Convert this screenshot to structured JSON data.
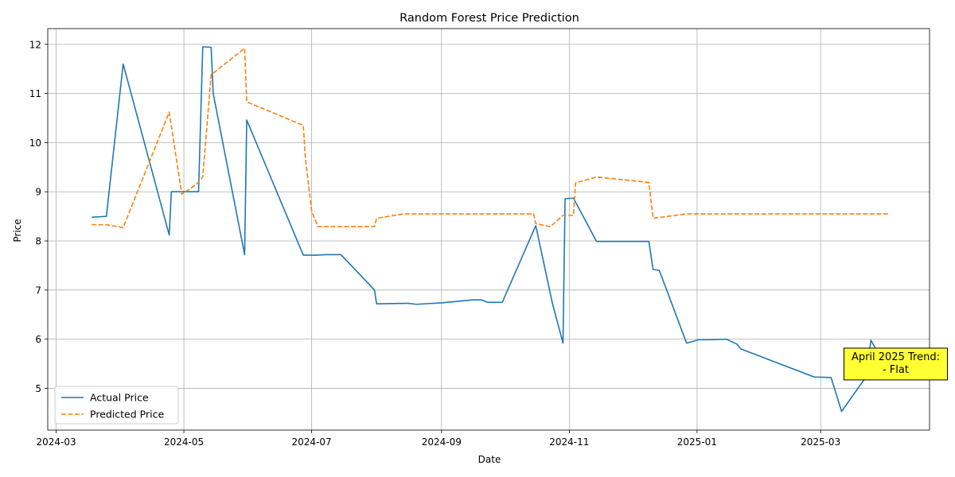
{
  "chart_data": {
    "type": "line",
    "title": "Random Forest Price Prediction",
    "xlabel": "Date",
    "ylabel": "Price",
    "x_ticks": [
      "2024-03",
      "2024-05",
      "2024-07",
      "2024-09",
      "2024-11",
      "2025-01",
      "2025-03"
    ],
    "x_range": [
      "2024-02-26",
      "2025-04-22"
    ],
    "y_ticks": [
      5,
      6,
      7,
      8,
      9,
      10,
      11,
      12
    ],
    "ylim": [
      4.15,
      12.32
    ],
    "grid": true,
    "legend_position": "lower-left",
    "series": [
      {
        "name": "Actual Price",
        "color": "#1f77b4",
        "dash": "solid",
        "points": [
          [
            "2024-03-18",
            8.48
          ],
          [
            "2024-03-25",
            8.5
          ],
          [
            "2024-04-02",
            11.6
          ],
          [
            "2024-04-24",
            8.12
          ],
          [
            "2024-04-25",
            9.0
          ],
          [
            "2024-05-08",
            9.0
          ],
          [
            "2024-05-10",
            11.95
          ],
          [
            "2024-05-14",
            11.94
          ],
          [
            "2024-05-15",
            11.0
          ],
          [
            "2024-05-30",
            7.72
          ],
          [
            "2024-05-31",
            10.46
          ],
          [
            "2024-06-27",
            7.71
          ],
          [
            "2024-07-03",
            7.71
          ],
          [
            "2024-07-08",
            7.72
          ],
          [
            "2024-07-15",
            7.72
          ],
          [
            "2024-07-31",
            7.0
          ],
          [
            "2024-08-01",
            6.72
          ],
          [
            "2024-08-16",
            6.73
          ],
          [
            "2024-08-20",
            6.71
          ],
          [
            "2024-09-01",
            6.74
          ],
          [
            "2024-09-16",
            6.8
          ],
          [
            "2024-09-20",
            6.8
          ],
          [
            "2024-09-23",
            6.75
          ],
          [
            "2024-09-30",
            6.75
          ],
          [
            "2024-10-16",
            8.31
          ],
          [
            "2024-10-24",
            6.72
          ],
          [
            "2024-10-29",
            5.92
          ],
          [
            "2024-10-30",
            8.86
          ],
          [
            "2024-11-03",
            8.87
          ],
          [
            "2024-11-14",
            7.99
          ],
          [
            "2024-12-09",
            7.99
          ],
          [
            "2024-12-11",
            7.42
          ],
          [
            "2024-12-14",
            7.4
          ],
          [
            "2024-12-27",
            5.92
          ],
          [
            "2025-01-02",
            5.99
          ],
          [
            "2025-01-07",
            5.99
          ],
          [
            "2025-01-15",
            6.0
          ],
          [
            "2025-01-20",
            5.9
          ],
          [
            "2025-01-22",
            5.8
          ],
          [
            "2025-02-26",
            5.23
          ],
          [
            "2025-03-06",
            5.22
          ],
          [
            "2025-03-11",
            4.53
          ],
          [
            "2025-03-23",
            5.25
          ],
          [
            "2025-03-25",
            5.98
          ],
          [
            "2025-03-30",
            5.6
          ],
          [
            "2025-04-03",
            5.2
          ]
        ]
      },
      {
        "name": "Predicted Price",
        "color": "#ff7f0e",
        "dash": "dashed",
        "points": [
          [
            "2024-03-18",
            8.33
          ],
          [
            "2024-03-25",
            8.33
          ],
          [
            "2024-04-02",
            8.27
          ],
          [
            "2024-04-24",
            10.62
          ],
          [
            "2024-04-30",
            8.95
          ],
          [
            "2024-05-07",
            9.15
          ],
          [
            "2024-05-10",
            9.3
          ],
          [
            "2024-05-14",
            11.38
          ],
          [
            "2024-05-30",
            11.92
          ],
          [
            "2024-05-31",
            10.83
          ],
          [
            "2024-06-27",
            10.35
          ],
          [
            "2024-06-28",
            9.7
          ],
          [
            "2024-07-01",
            8.6
          ],
          [
            "2024-07-04",
            8.29
          ],
          [
            "2024-07-31",
            8.29
          ],
          [
            "2024-08-01",
            8.46
          ],
          [
            "2024-08-14",
            8.55
          ],
          [
            "2024-10-15",
            8.55
          ],
          [
            "2024-10-16",
            8.35
          ],
          [
            "2024-10-23",
            8.29
          ],
          [
            "2024-10-29",
            8.52
          ],
          [
            "2024-11-03",
            8.52
          ],
          [
            "2024-11-04",
            9.18
          ],
          [
            "2024-11-14",
            9.3
          ],
          [
            "2024-12-09",
            9.19
          ],
          [
            "2024-12-11",
            8.46
          ],
          [
            "2024-12-27",
            8.55
          ],
          [
            "2025-04-03",
            8.55
          ]
        ]
      }
    ],
    "annotation": {
      "lines": [
        "April 2025 Trend:",
        "- Flat"
      ],
      "background": "#ffff33",
      "anchor": [
        "2025-03-30",
        5.3
      ]
    }
  }
}
